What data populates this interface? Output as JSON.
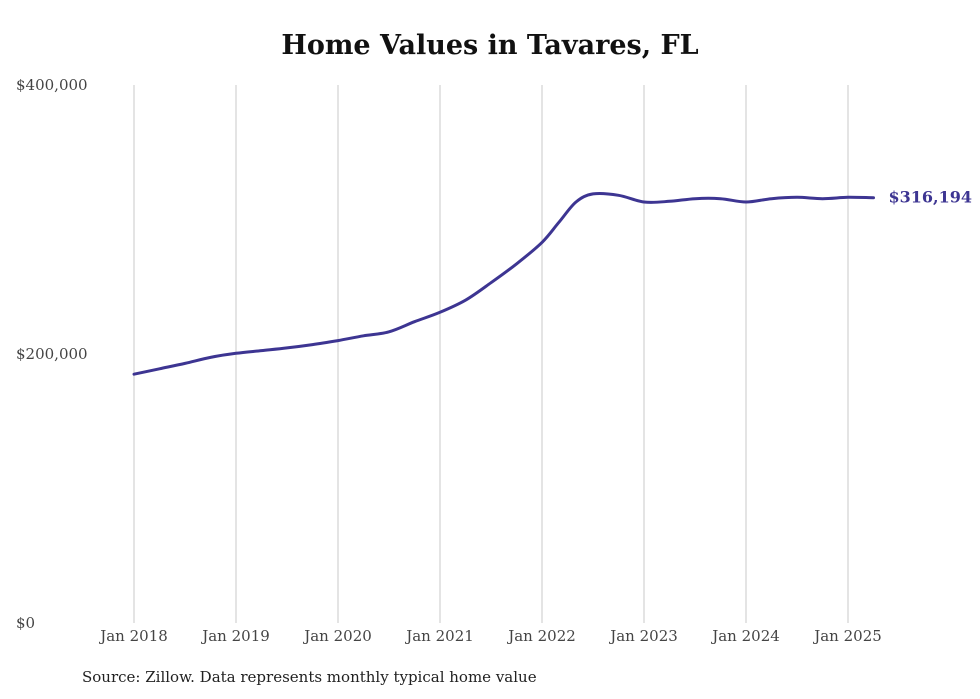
{
  "title": "Home Values in Tavares, FL",
  "source": "Source: Zillow. Data represents monthly typical home value",
  "colors": {
    "line": "#3d3592",
    "grid": "#c8c8c8",
    "text": "#444444"
  },
  "chart_data": {
    "type": "line",
    "title": "Home Values in Tavares, FL",
    "xlabel": "",
    "ylabel": "",
    "ylim": [
      0,
      400000
    ],
    "xlim": [
      "2018-01",
      "2025-04"
    ],
    "grid": "vertical",
    "x_ticks": [
      "Jan 2018",
      "Jan 2019",
      "Jan 2020",
      "Jan 2021",
      "Jan 2022",
      "Jan 2023",
      "Jan 2024",
      "Jan 2025"
    ],
    "y_ticks": [
      {
        "value": 400000,
        "label": "$400,000"
      },
      {
        "value": 200000,
        "label": "$200,000"
      },
      {
        "value": 0,
        "label": "$0"
      }
    ],
    "end_label": "$316,194",
    "series": [
      {
        "points": [
          {
            "x": "2018-01",
            "y": 185000
          },
          {
            "x": "2018-04",
            "y": 189000
          },
          {
            "x": "2018-07",
            "y": 193000
          },
          {
            "x": "2018-10",
            "y": 197500
          },
          {
            "x": "2019-01",
            "y": 200500
          },
          {
            "x": "2019-04",
            "y": 202500
          },
          {
            "x": "2019-07",
            "y": 204500
          },
          {
            "x": "2019-10",
            "y": 207000
          },
          {
            "x": "2020-01",
            "y": 210000
          },
          {
            "x": "2020-04",
            "y": 213500
          },
          {
            "x": "2020-07",
            "y": 216500
          },
          {
            "x": "2020-10",
            "y": 224000
          },
          {
            "x": "2021-01",
            "y": 231000
          },
          {
            "x": "2021-04",
            "y": 240000
          },
          {
            "x": "2021-07",
            "y": 253000
          },
          {
            "x": "2021-10",
            "y": 267000
          },
          {
            "x": "2022-01",
            "y": 283000
          },
          {
            "x": "2022-03",
            "y": 298000
          },
          {
            "x": "2022-05",
            "y": 313000
          },
          {
            "x": "2022-07",
            "y": 319000
          },
          {
            "x": "2022-10",
            "y": 318000
          },
          {
            "x": "2023-01",
            "y": 313000
          },
          {
            "x": "2023-04",
            "y": 313500
          },
          {
            "x": "2023-07",
            "y": 315500
          },
          {
            "x": "2023-10",
            "y": 315500
          },
          {
            "x": "2024-01",
            "y": 313000
          },
          {
            "x": "2024-04",
            "y": 315500
          },
          {
            "x": "2024-07",
            "y": 316500
          },
          {
            "x": "2024-10",
            "y": 315500
          },
          {
            "x": "2025-01",
            "y": 316500
          },
          {
            "x": "2025-04",
            "y": 316194
          }
        ]
      }
    ]
  }
}
